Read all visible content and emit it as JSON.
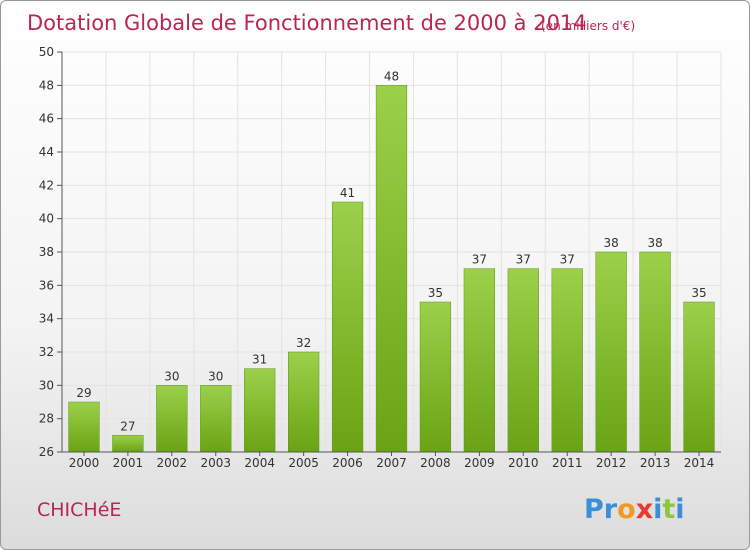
{
  "chart_data": {
    "type": "bar",
    "title": "Dotation Globale de Fonctionnement de 2000 à 2014",
    "subtitle": "(en milliers d'€)",
    "categories": [
      "2000",
      "2001",
      "2002",
      "2003",
      "2004",
      "2005",
      "2006",
      "2007",
      "2008",
      "2009",
      "2010",
      "2011",
      "2012",
      "2013",
      "2014"
    ],
    "values": [
      29,
      27,
      30,
      30,
      31,
      32,
      41,
      48,
      35,
      37,
      37,
      37,
      38,
      38,
      35
    ],
    "ylim": [
      26,
      50
    ],
    "yticks": [
      26,
      28,
      30,
      32,
      34,
      36,
      38,
      40,
      42,
      44,
      46,
      48,
      50
    ],
    "grid": true,
    "bar_color": "#7ab51d",
    "bar_color_light": "#9bd14a"
  },
  "footer": {
    "place": "CHICHéE",
    "logo_letters": [
      {
        "ch": "P",
        "color": "#3a8fd6"
      },
      {
        "ch": "r",
        "color": "#3a8fd6"
      },
      {
        "ch": "o",
        "color": "#f29a1f"
      },
      {
        "ch": "x",
        "color": "#e53b2f"
      },
      {
        "ch": "i",
        "color": "#3a8fd6"
      },
      {
        "ch": "t",
        "color": "#8dc63f"
      },
      {
        "ch": "i",
        "color": "#3a8fd6"
      }
    ]
  }
}
